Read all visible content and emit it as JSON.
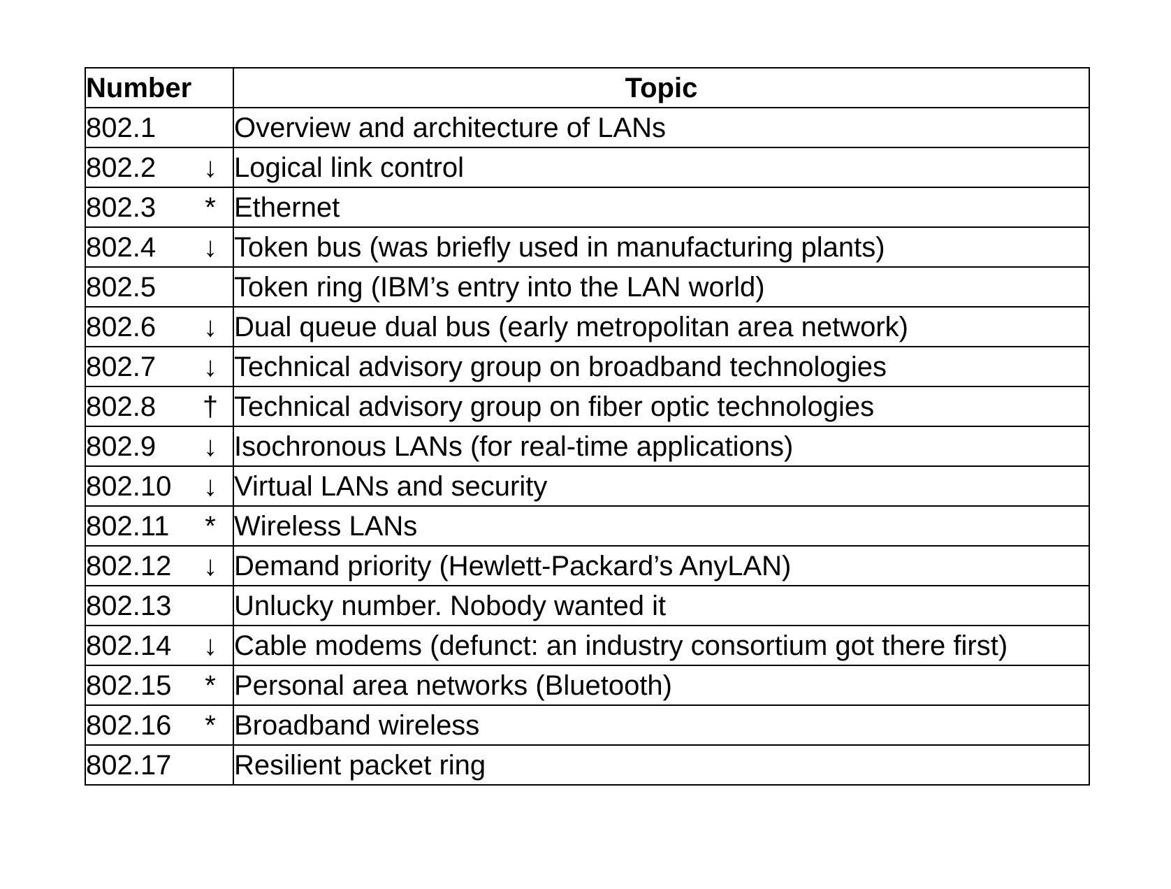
{
  "table": {
    "headers": {
      "number": "Number",
      "topic": "Topic"
    },
    "rows": [
      {
        "number": "802.1",
        "mark": "",
        "topic": "Overview and architecture of LANs"
      },
      {
        "number": "802.2",
        "mark": "↓",
        "topic": "Logical link control"
      },
      {
        "number": "802.3",
        "mark": "*",
        "topic": "Ethernet"
      },
      {
        "number": "802.4",
        "mark": "↓",
        "topic": "Token bus (was briefly used in manufacturing plants)"
      },
      {
        "number": "802.5",
        "mark": "",
        "topic": "Token ring (IBM’s  entry into the LAN world)"
      },
      {
        "number": "802.6",
        "mark": "↓",
        "topic": "Dual queue dual bus (early metropolitan area network)"
      },
      {
        "number": "802.7",
        "mark": "↓",
        "topic": "Technical advisory group on broadband technologies"
      },
      {
        "number": "802.8",
        "mark": "†",
        "topic": "Technical advisory group on fiber optic technologies"
      },
      {
        "number": "802.9",
        "mark": "↓",
        "topic": "Isochronous LANs (for real-time applications)"
      },
      {
        "number": "802.10",
        "mark": "↓",
        "topic": "Virtual LANs and security"
      },
      {
        "number": "802.11",
        "mark": "*",
        "topic": "Wireless LANs"
      },
      {
        "number": "802.12",
        "mark": "↓",
        "topic": "Demand priority (Hewlett-Packard’s AnyLAN)"
      },
      {
        "number": "802.13",
        "mark": "",
        "topic": "Unlucky number. Nobody wanted it"
      },
      {
        "number": "802.14",
        "mark": "↓",
        "topic": "Cable modems (defunct: an industry consortium got there first)"
      },
      {
        "number": "802.15",
        "mark": "*",
        "topic": "Personal area networks (Bluetooth)"
      },
      {
        "number": "802.16",
        "mark": "*",
        "topic": "Broadband wireless"
      },
      {
        "number": "802.17",
        "mark": "",
        "topic": "Resilient packet ring"
      }
    ]
  }
}
